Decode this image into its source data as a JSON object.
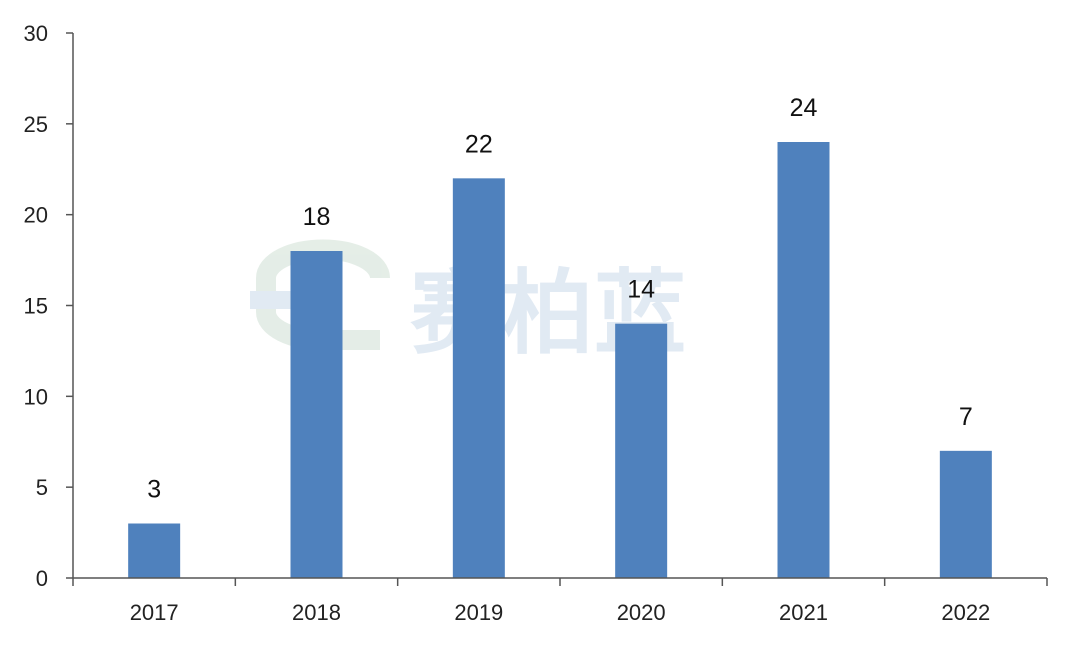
{
  "chart_data": {
    "type": "bar",
    "categories": [
      "2017",
      "2018",
      "2019",
      "2020",
      "2021",
      "2022"
    ],
    "values": [
      3,
      18,
      22,
      14,
      24,
      7
    ],
    "ylim": [
      0,
      30
    ],
    "yticks": [
      0,
      5,
      10,
      15,
      20,
      25,
      30
    ],
    "bar_color": "#4f81bd",
    "grid": false,
    "legend": "none",
    "data_labels": true
  },
  "watermark": {
    "text": "赛柏蓝",
    "color": "#c9d9ea"
  }
}
